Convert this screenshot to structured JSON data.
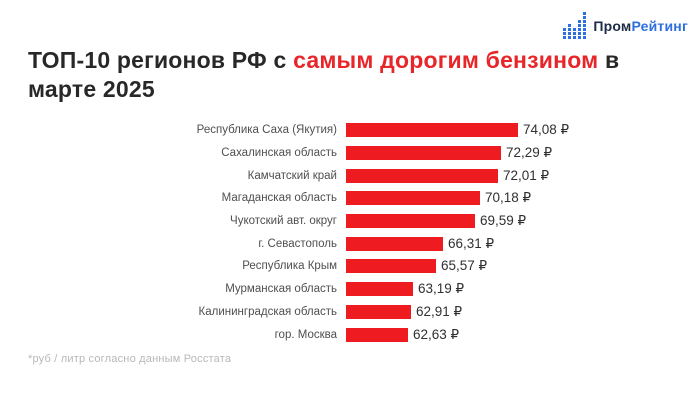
{
  "logo": {
    "icon": "dotted-bar-chart-icon",
    "icon_columns": [
      3,
      4,
      3,
      5,
      7
    ],
    "icon_color": "#2e6fe0",
    "text_primary": "Пром",
    "text_secondary": "Рейтинг",
    "primary_color": "#1e2c48",
    "secondary_color": "#2e6fe0"
  },
  "title": {
    "prefix": "ТОП-10 регионов РФ с ",
    "highlight": "самым дорогим бензином",
    "suffix": " в",
    "line2": "марте 2025",
    "highlight_color": "#e8262a"
  },
  "footnote": "*руб / литр согласно данным Росстата",
  "chart_data": {
    "type": "bar",
    "orientation": "horizontal",
    "title": "ТОП-10 регионов РФ с самым дорогим бензином в марте 2025",
    "unit": "руб / литр",
    "categories": [
      "Республика Саха (Якутия)",
      "Сахалинская область",
      "Камчатский край",
      "Магаданская область",
      "Чукотский авт. округ",
      "г. Севастополь",
      "Республика Крым",
      "Мурманская область",
      "Калининградская область",
      "гор. Москва"
    ],
    "values": [
      74.08,
      72.29,
      72.01,
      70.18,
      69.59,
      66.31,
      65.57,
      63.19,
      62.91,
      62.63
    ],
    "value_labels": [
      "74,08 ₽",
      "72,29 ₽",
      "72,01 ₽",
      "70,18 ₽",
      "69,59 ₽",
      "66,31 ₽",
      "65,57 ₽",
      "63,19 ₽",
      "62,91 ₽",
      "62,63 ₽"
    ],
    "bar_color": "#ee1b20",
    "xlim": [
      56.2,
      75.5
    ],
    "grid": false,
    "legend": false
  }
}
